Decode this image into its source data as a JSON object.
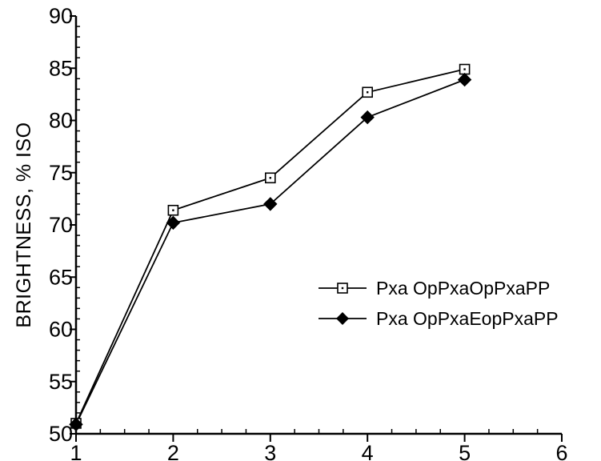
{
  "chart_data": {
    "type": "line",
    "title": "",
    "xlabel": "",
    "ylabel": "BRIGHTNESS, % ISO",
    "xlim": [
      1,
      6
    ],
    "ylim": [
      50,
      90
    ],
    "x_ticks": [
      1,
      2,
      3,
      4,
      5,
      6
    ],
    "x_tick_labels": [
      "1",
      "2",
      "3",
      "4",
      "5",
      "6"
    ],
    "y_ticks": [
      50,
      55,
      60,
      65,
      70,
      75,
      80,
      85,
      90
    ],
    "y_tick_labels": [
      "50",
      "55",
      "60",
      "65",
      "70",
      "75",
      "80",
      "85",
      "90"
    ],
    "grid": false,
    "legend_position": "right",
    "series": [
      {
        "name": "Pxa OpPxaOpPxaPP",
        "marker": "open-square",
        "x": [
          1,
          2,
          3,
          4,
          5
        ],
        "y": [
          51,
          71.4,
          74.5,
          82.7,
          84.9
        ]
      },
      {
        "name": "Pxa OpPxaEopPxaPP",
        "marker": "filled-diamond",
        "x": [
          1,
          2,
          3,
          4,
          5
        ],
        "y": [
          50.9,
          70.2,
          72,
          80.3,
          83.9
        ]
      }
    ]
  }
}
